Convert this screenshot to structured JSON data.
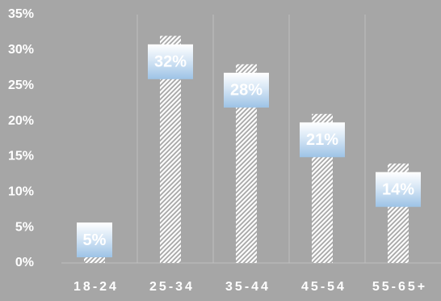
{
  "chart_data": {
    "type": "bar",
    "categories": [
      "18-24",
      "25-34",
      "35-44",
      "45-54",
      "55-65+"
    ],
    "values": [
      5,
      32,
      28,
      21,
      14
    ],
    "value_labels": [
      "5%",
      "32%",
      "28%",
      "21%",
      "14%"
    ],
    "color": "#ffffff",
    "ylim": [
      0,
      35
    ],
    "yticks": [
      {
        "value": 0,
        "label": "0%"
      },
      {
        "value": 5,
        "label": "5%"
      },
      {
        "value": 10,
        "label": "10%"
      },
      {
        "value": 15,
        "label": "15%"
      },
      {
        "value": 20,
        "label": "20%"
      },
      {
        "value": 25,
        "label": "25%"
      },
      {
        "value": 30,
        "label": "30%"
      },
      {
        "value": 35,
        "label": "35%"
      }
    ]
  }
}
